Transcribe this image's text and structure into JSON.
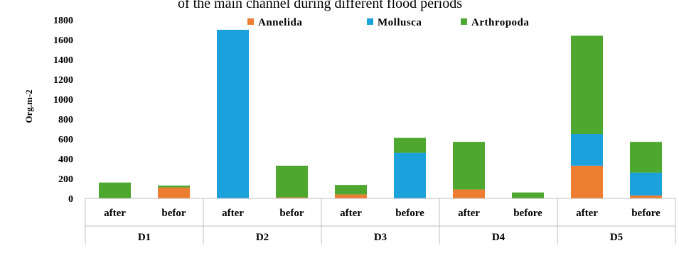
{
  "chart_data": {
    "type": "bar",
    "stacked": true,
    "title": "of the main channel during different flood periods",
    "xlabel": "",
    "ylabel": "Org.m-2",
    "ylim": [
      0,
      1800
    ],
    "yticks": [
      0,
      200,
      400,
      600,
      800,
      1000,
      1200,
      1400,
      1600,
      1800
    ],
    "grid": false,
    "legend_position": "top",
    "groups": [
      "D1",
      "D2",
      "D3",
      "D4",
      "D5"
    ],
    "categories": [
      "after",
      "befor",
      "after",
      "befor",
      "after",
      "before",
      "after",
      "before",
      "after",
      "before"
    ],
    "series": [
      {
        "name": "Annelida",
        "color": "#ED7D31",
        "values": [
          0,
          110,
          0,
          10,
          40,
          0,
          90,
          0,
          330,
          30
        ]
      },
      {
        "name": "Mollusca",
        "color": "#1BA1DB",
        "values": [
          0,
          0,
          1700,
          0,
          0,
          460,
          0,
          0,
          320,
          230
        ]
      },
      {
        "name": "Arthropoda",
        "color": "#4EA72E",
        "values": [
          160,
          20,
          0,
          320,
          95,
          150,
          480,
          60,
          990,
          310
        ]
      }
    ]
  }
}
